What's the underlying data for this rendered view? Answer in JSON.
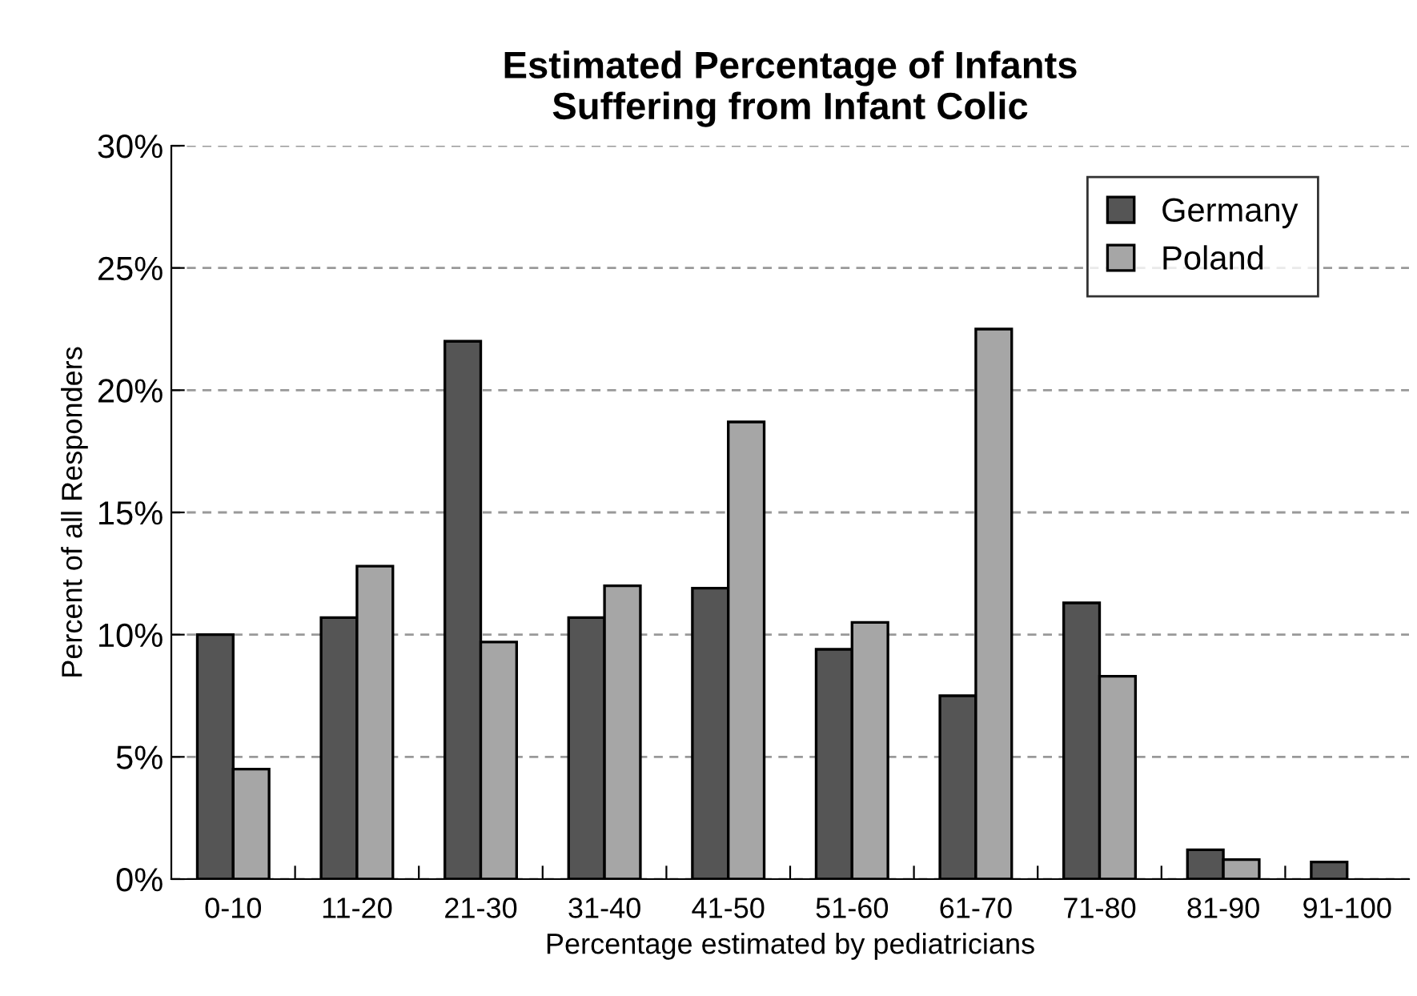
{
  "chart_data": {
    "type": "bar",
    "title": "Estimated Percentage of Infants\nSuffering from Infant Colic",
    "xlabel": "Percentage estimated by pediatricians",
    "ylabel": "Percent of all Responders",
    "categories": [
      "0-10",
      "11-20",
      "21-30",
      "31-40",
      "41-50",
      "51-60",
      "61-70",
      "71-80",
      "81-90",
      "91-100"
    ],
    "series": [
      {
        "name": "Germany",
        "color": "#555555",
        "values": [
          10.0,
          10.7,
          22.0,
          10.7,
          11.9,
          9.4,
          7.5,
          11.3,
          1.2,
          0.7
        ]
      },
      {
        "name": "Poland",
        "color": "#a6a6a6",
        "values": [
          4.5,
          12.8,
          9.7,
          12.0,
          18.7,
          10.5,
          22.5,
          8.3,
          0.8,
          null
        ]
      }
    ],
    "ylim": [
      0,
      30
    ],
    "yticks": [
      {
        "value": 0,
        "label": "0%"
      },
      {
        "value": 5,
        "label": "5%"
      },
      {
        "value": 10,
        "label": "10%"
      },
      {
        "value": 15,
        "label": "15%"
      },
      {
        "value": 20,
        "label": "20%"
      },
      {
        "value": 25,
        "label": "25%"
      },
      {
        "value": 30,
        "label": "30%"
      }
    ],
    "grid": "y",
    "legend": "top right"
  }
}
